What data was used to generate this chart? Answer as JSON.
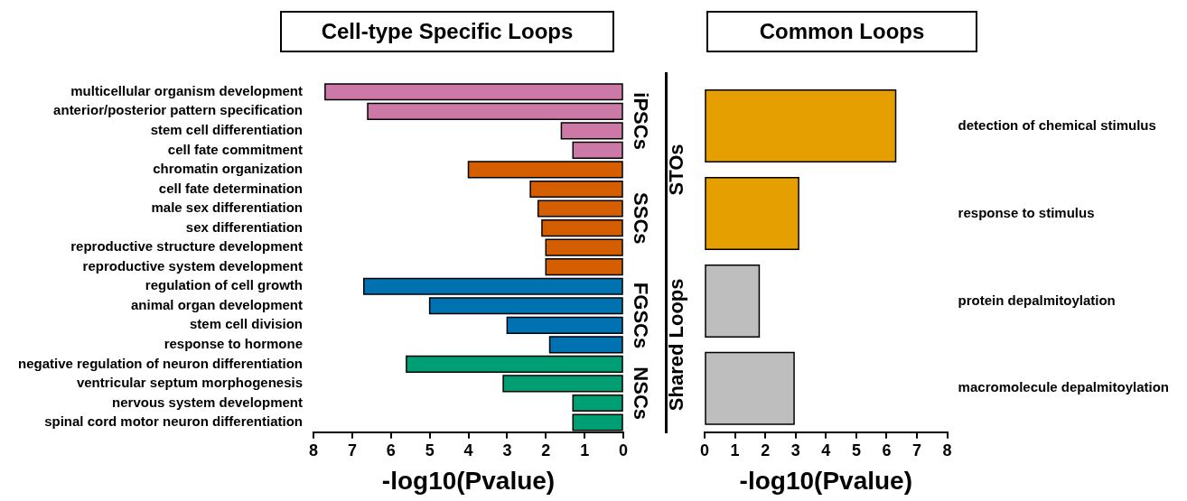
{
  "chart_data": [
    {
      "type": "bar",
      "orientation": "horizontal",
      "title": "Cell-type Specific Loops",
      "xlabel": "-log10(Pvalue)",
      "xlim": [
        8,
        0
      ],
      "xticks": [
        0,
        1,
        2,
        3,
        4,
        5,
        6,
        7,
        8
      ],
      "categories": [
        "multicellular organism development",
        "anterior/posterior pattern specification",
        "stem cell differentiation",
        "cell fate commitment",
        "chromatin organization",
        "cell fate determination",
        "male sex differentiation",
        "sex differentiation",
        "reproductive structure development",
        "reproductive system development",
        "regulation of cell growth",
        "animal organ development",
        "stem cell division",
        "response to hormone",
        "negative regulation of neuron differentiation",
        "ventricular septum morphogenesis",
        "nervous system development",
        "spinal cord motor neuron differentiation"
      ],
      "series": [
        {
          "name": "iPSCs",
          "color": "#cc79a7",
          "values": [
            7.7,
            6.6,
            1.6,
            1.3,
            null,
            null,
            null,
            null,
            null,
            null,
            null,
            null,
            null,
            null,
            null,
            null,
            null,
            null
          ]
        },
        {
          "name": "SSCs",
          "color": "#d55e00",
          "values": [
            null,
            null,
            null,
            null,
            4.0,
            2.4,
            2.2,
            2.1,
            2.0,
            2.0,
            null,
            null,
            null,
            null,
            null,
            null,
            null,
            null
          ]
        },
        {
          "name": "FGSCs",
          "color": "#0072b2",
          "values": [
            null,
            null,
            null,
            null,
            null,
            null,
            null,
            null,
            null,
            null,
            6.7,
            5.0,
            3.0,
            1.9,
            null,
            null,
            null,
            null
          ]
        },
        {
          "name": "NSCs",
          "color": "#009e73",
          "values": [
            null,
            null,
            null,
            null,
            null,
            null,
            null,
            null,
            null,
            null,
            null,
            null,
            null,
            null,
            5.6,
            3.1,
            1.3,
            1.3
          ]
        }
      ]
    },
    {
      "type": "bar",
      "orientation": "horizontal",
      "title": "Common Loops",
      "xlabel": "-log10(Pvalue)",
      "xlim": [
        0,
        8
      ],
      "xticks": [
        0,
        1,
        2,
        3,
        4,
        5,
        6,
        7,
        8
      ],
      "categories": [
        "detection of chemical stimulus",
        "response to stimulus",
        "protein depalmitoylation",
        "macromolecule depalmitoylation"
      ],
      "series": [
        {
          "name": "STOs",
          "color": "#e69f00",
          "values": [
            6.3,
            3.1,
            null,
            null
          ]
        },
        {
          "name": "Shared Loops",
          "color": "#bebebe",
          "values": [
            null,
            null,
            1.8,
            2.95
          ]
        }
      ]
    }
  ]
}
